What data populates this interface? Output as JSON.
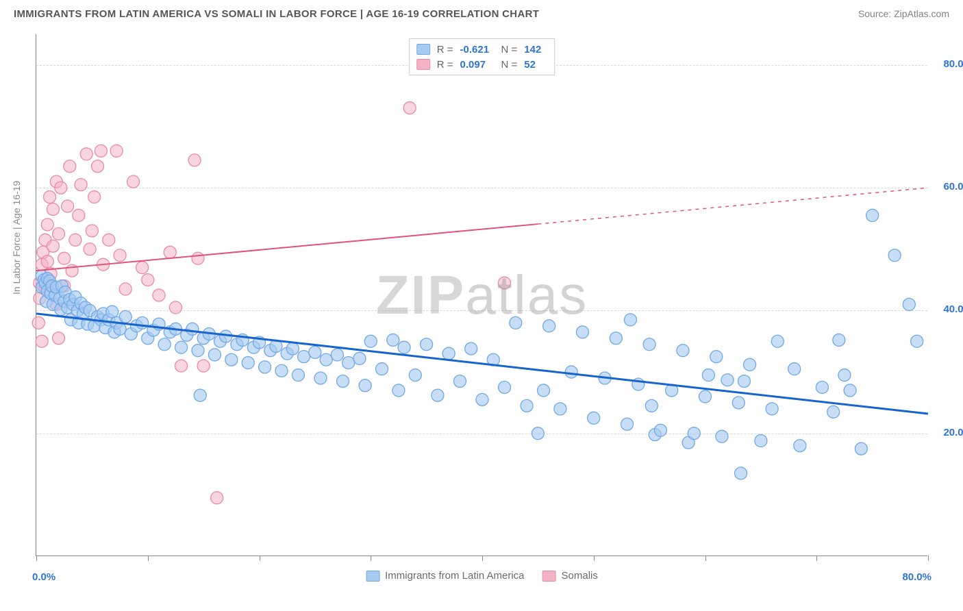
{
  "chart": {
    "type": "scatter",
    "title": "IMMIGRANTS FROM LATIN AMERICA VS SOMALI IN LABOR FORCE | AGE 16-19 CORRELATION CHART",
    "source": "Source: ZipAtlas.com",
    "ylabel": "In Labor Force | Age 16-19",
    "watermark": "ZIPatlas",
    "background_color": "#ffffff",
    "grid_color": "#d8d8d8",
    "axis_color": "#888888",
    "title_color": "#555555",
    "title_fontsize": 15,
    "label_fontsize": 14,
    "tick_fontsize": 15,
    "xlim": [
      0,
      80
    ],
    "ylim": [
      0,
      85
    ],
    "ytick_values": [
      20,
      40,
      60,
      80
    ],
    "ytick_labels": [
      "20.0%",
      "40.0%",
      "60.0%",
      "80.0%"
    ],
    "ytick_color": "#2e74d8",
    "xtick_positions": [
      0,
      10,
      20,
      30,
      40,
      50,
      60,
      70,
      80
    ],
    "xtick_labels": {
      "0": "0.0%",
      "80": "80.0%"
    },
    "xtick_color": "#2e74d8",
    "series": [
      {
        "name": "Immigrants from Latin America",
        "color_fill": "#a7caf0",
        "color_stroke": "#6fa8e8",
        "marker_radius": 9,
        "fill_opacity": 0.62,
        "regression": {
          "x1": 0,
          "y1": 39.5,
          "x2": 80,
          "y2": 23.2,
          "color": "#1664cc",
          "width": 3,
          "dash_from_x": null
        },
        "R_label": "R =",
        "R_value": "-0.621",
        "N_label": "N =",
        "N_value": "142",
        "points": [
          [
            0.5,
            45.6
          ],
          [
            0.5,
            43.8
          ],
          [
            0.7,
            45.0
          ],
          [
            0.8,
            44.5
          ],
          [
            0.9,
            41.5
          ],
          [
            1.0,
            45.2
          ],
          [
            1.0,
            43.2
          ],
          [
            1.2,
            44.8
          ],
          [
            1.3,
            42.8
          ],
          [
            1.4,
            44.0
          ],
          [
            1.5,
            41.0
          ],
          [
            1.7,
            42.5
          ],
          [
            1.8,
            43.8
          ],
          [
            2.1,
            42.0
          ],
          [
            2.2,
            40.2
          ],
          [
            2.3,
            44.0
          ],
          [
            2.5,
            41.5
          ],
          [
            2.6,
            43.0
          ],
          [
            2.8,
            40.5
          ],
          [
            3.0,
            41.8
          ],
          [
            3.1,
            38.5
          ],
          [
            3.3,
            41.0
          ],
          [
            3.5,
            42.2
          ],
          [
            3.7,
            40.0
          ],
          [
            3.8,
            38.0
          ],
          [
            4.0,
            41.2
          ],
          [
            4.2,
            39.5
          ],
          [
            4.4,
            40.5
          ],
          [
            4.6,
            37.8
          ],
          [
            4.8,
            40.0
          ],
          [
            5.2,
            37.5
          ],
          [
            5.5,
            39.0
          ],
          [
            5.8,
            38.5
          ],
          [
            6.0,
            39.5
          ],
          [
            6.2,
            37.2
          ],
          [
            6.5,
            38.5
          ],
          [
            6.8,
            39.8
          ],
          [
            7.0,
            36.5
          ],
          [
            7.2,
            38.0
          ],
          [
            7.5,
            37.0
          ],
          [
            8.0,
            39.0
          ],
          [
            8.5,
            36.2
          ],
          [
            9.0,
            37.5
          ],
          [
            9.5,
            38.0
          ],
          [
            10.0,
            35.5
          ],
          [
            10.5,
            36.8
          ],
          [
            11.0,
            37.8
          ],
          [
            11.5,
            34.5
          ],
          [
            12.0,
            36.5
          ],
          [
            12.5,
            37.0
          ],
          [
            13.0,
            34.0
          ],
          [
            13.5,
            36.0
          ],
          [
            14.0,
            37.0
          ],
          [
            14.5,
            33.5
          ],
          [
            15.0,
            35.5
          ],
          [
            15.5,
            36.2
          ],
          [
            14.7,
            26.2
          ],
          [
            16.0,
            32.8
          ],
          [
            16.5,
            35.0
          ],
          [
            17.0,
            35.8
          ],
          [
            17.5,
            32.0
          ],
          [
            18.0,
            34.5
          ],
          [
            18.5,
            35.2
          ],
          [
            19.0,
            31.5
          ],
          [
            19.5,
            34.0
          ],
          [
            20.0,
            34.8
          ],
          [
            20.5,
            30.8
          ],
          [
            21.0,
            33.5
          ],
          [
            21.5,
            34.2
          ],
          [
            22.0,
            30.2
          ],
          [
            22.5,
            33.0
          ],
          [
            23.0,
            33.8
          ],
          [
            23.5,
            29.5
          ],
          [
            24.0,
            32.5
          ],
          [
            25.0,
            33.2
          ],
          [
            25.5,
            29.0
          ],
          [
            26.0,
            32.0
          ],
          [
            27.0,
            32.8
          ],
          [
            27.5,
            28.5
          ],
          [
            28.0,
            31.5
          ],
          [
            29.0,
            32.2
          ],
          [
            29.5,
            27.8
          ],
          [
            30.0,
            35.0
          ],
          [
            31.0,
            30.5
          ],
          [
            32.0,
            35.2
          ],
          [
            32.5,
            27.0
          ],
          [
            33.0,
            34.0
          ],
          [
            34.0,
            29.5
          ],
          [
            35.0,
            34.5
          ],
          [
            36.0,
            26.2
          ],
          [
            37.0,
            33.0
          ],
          [
            38.0,
            28.5
          ],
          [
            39.0,
            33.8
          ],
          [
            40.0,
            25.5
          ],
          [
            41.0,
            32.0
          ],
          [
            42.0,
            27.5
          ],
          [
            43.0,
            38.0
          ],
          [
            44.0,
            24.5
          ],
          [
            45.5,
            27.0
          ],
          [
            45.0,
            20.0
          ],
          [
            46.0,
            37.5
          ],
          [
            47.0,
            24.0
          ],
          [
            48.0,
            30.0
          ],
          [
            49.0,
            36.5
          ],
          [
            50.0,
            22.5
          ],
          [
            51.0,
            29.0
          ],
          [
            52.0,
            35.5
          ],
          [
            53.0,
            21.5
          ],
          [
            53.3,
            38.5
          ],
          [
            54.0,
            28.0
          ],
          [
            55.0,
            34.5
          ],
          [
            55.5,
            19.8
          ],
          [
            55.2,
            24.5
          ],
          [
            56.0,
            20.5
          ],
          [
            57.0,
            27.0
          ],
          [
            58.0,
            33.5
          ],
          [
            58.5,
            18.5
          ],
          [
            59.0,
            20.0
          ],
          [
            60.0,
            26.0
          ],
          [
            60.3,
            29.5
          ],
          [
            61.0,
            32.5
          ],
          [
            61.5,
            19.5
          ],
          [
            62.0,
            28.7
          ],
          [
            63.0,
            25.0
          ],
          [
            63.2,
            13.5
          ],
          [
            63.5,
            28.5
          ],
          [
            64.0,
            31.2
          ],
          [
            65.0,
            18.8
          ],
          [
            66.0,
            24.0
          ],
          [
            66.5,
            35.0
          ],
          [
            68.0,
            30.5
          ],
          [
            68.5,
            18.0
          ],
          [
            70.5,
            27.5
          ],
          [
            71.5,
            23.5
          ],
          [
            72.0,
            35.2
          ],
          [
            72.5,
            29.5
          ],
          [
            73.0,
            27.0
          ],
          [
            74.0,
            17.5
          ],
          [
            75.0,
            55.5
          ],
          [
            77.0,
            49.0
          ],
          [
            78.3,
            41.0
          ],
          [
            79.0,
            35.0
          ]
        ]
      },
      {
        "name": "Somalis",
        "color_fill": "#f4b3c5",
        "color_stroke": "#ea8aa6",
        "marker_radius": 9,
        "fill_opacity": 0.55,
        "regression": {
          "x1": 0,
          "y1": 46.5,
          "x2": 80,
          "y2": 60.0,
          "color": "#e15276",
          "width": 2,
          "dash_from_x": 45
        },
        "R_label": "R =",
        "R_value": "0.097",
        "N_label": "N =",
        "N_value": "52",
        "points": [
          [
            0.2,
            38.0
          ],
          [
            0.3,
            44.5
          ],
          [
            0.3,
            42.0
          ],
          [
            0.5,
            47.5
          ],
          [
            0.6,
            49.5
          ],
          [
            0.6,
            44.0
          ],
          [
            0.8,
            51.5
          ],
          [
            0.8,
            43.5
          ],
          [
            1.0,
            48.0
          ],
          [
            1.0,
            54.0
          ],
          [
            1.2,
            58.5
          ],
          [
            1.3,
            46.0
          ],
          [
            1.5,
            50.5
          ],
          [
            1.5,
            56.5
          ],
          [
            1.8,
            61.0
          ],
          [
            1.8,
            41.0
          ],
          [
            2.0,
            52.5
          ],
          [
            2.2,
            60.0
          ],
          [
            2.5,
            48.5
          ],
          [
            2.5,
            44.0
          ],
          [
            2.8,
            57.0
          ],
          [
            3.0,
            63.5
          ],
          [
            3.2,
            46.5
          ],
          [
            3.5,
            51.5
          ],
          [
            3.8,
            55.5
          ],
          [
            4.0,
            60.5
          ],
          [
            4.5,
            65.5
          ],
          [
            4.8,
            50.0
          ],
          [
            5.0,
            53.0
          ],
          [
            5.2,
            58.5
          ],
          [
            5.5,
            63.5
          ],
          [
            5.8,
            66.0
          ],
          [
            6.0,
            47.5
          ],
          [
            6.5,
            51.5
          ],
          [
            7.2,
            66.0
          ],
          [
            7.5,
            49.0
          ],
          [
            8.0,
            43.5
          ],
          [
            8.7,
            61.0
          ],
          [
            9.5,
            47.0
          ],
          [
            10.0,
            45.0
          ],
          [
            11.0,
            42.5
          ],
          [
            12.0,
            49.5
          ],
          [
            12.5,
            40.5
          ],
          [
            13.0,
            31.0
          ],
          [
            14.2,
            64.5
          ],
          [
            14.5,
            48.5
          ],
          [
            15.0,
            31.0
          ],
          [
            16.2,
            9.5
          ],
          [
            33.5,
            73.0
          ],
          [
            42.0,
            44.5
          ],
          [
            0.5,
            35.0
          ],
          [
            2.0,
            35.5
          ]
        ]
      }
    ],
    "legend_top_labels": {
      "series0": {
        "R": "R =",
        "Rv": "-0.621",
        "N": "N =",
        "Nv": "142"
      },
      "series1": {
        "R": "R =",
        "Rv": "0.097",
        "N": "N =",
        "Nv": "52"
      }
    },
    "legend_bottom": [
      {
        "label": "Immigrants from Latin America",
        "fill": "#a7caf0",
        "stroke": "#6fa8e8"
      },
      {
        "label": "Somalis",
        "fill": "#f4b3c5",
        "stroke": "#ea8aa6"
      }
    ]
  }
}
